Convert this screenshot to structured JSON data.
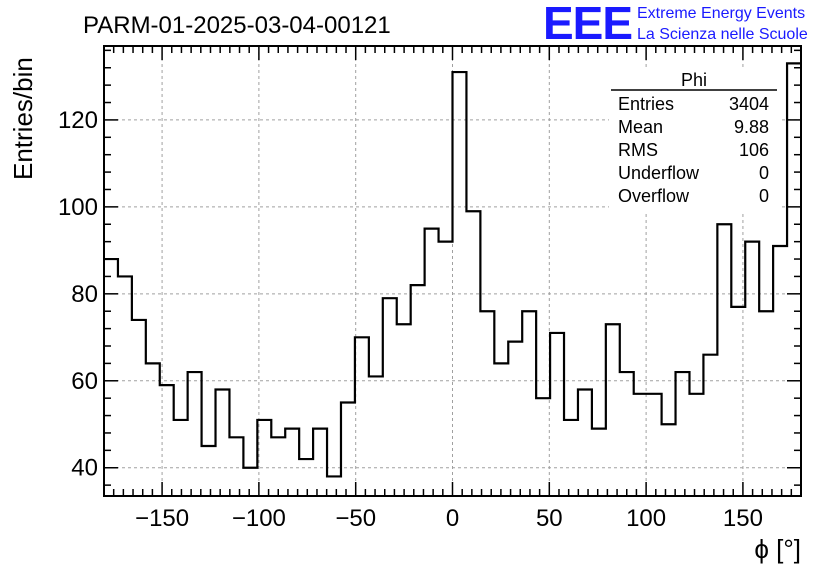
{
  "title": "PARM-01-2025-03-04-00121",
  "logo": {
    "letters": "EEE",
    "line1": "Extreme Energy Events",
    "line2": "La Scienza nelle Scuole",
    "color": "#1a1aff"
  },
  "stats": {
    "name": "Phi",
    "rows": [
      {
        "label": "Entries",
        "value": "3404"
      },
      {
        "label": "Mean",
        "value": "9.88"
      },
      {
        "label": "RMS",
        "value": "106"
      },
      {
        "label": "Underflow",
        "value": "0"
      },
      {
        "label": "Overflow",
        "value": "0"
      }
    ]
  },
  "chart_data": {
    "type": "histogram",
    "title": "PARM-01-2025-03-04-00121",
    "xlabel": "ϕ [°]",
    "ylabel": "Entries/bin",
    "xlim": [
      -180,
      180
    ],
    "ylim": [
      33.5,
      137
    ],
    "bin_width": 7.2,
    "bin_edges_start": -180,
    "values": [
      88,
      84,
      74,
      64,
      59,
      51,
      62,
      45,
      58,
      47,
      40,
      51,
      47,
      49,
      42,
      49,
      38,
      55,
      70,
      61,
      79,
      73,
      82,
      95,
      92,
      131,
      99,
      76,
      64,
      69,
      76,
      56,
      71,
      51,
      58,
      49,
      73,
      62,
      57,
      57,
      50,
      62,
      57,
      66,
      96,
      77,
      92,
      76,
      91,
      133
    ],
    "x_ticks": [
      -150,
      -100,
      -50,
      0,
      50,
      100,
      150
    ],
    "x_tick_labels": [
      "−150",
      "−100",
      "−50",
      "0",
      "50",
      "100",
      "150"
    ],
    "y_ticks": [
      40,
      60,
      80,
      100,
      120
    ],
    "y_tick_labels": [
      "40",
      "60",
      "80",
      "100",
      "120"
    ],
    "grid": true,
    "line_color": "#000000"
  }
}
